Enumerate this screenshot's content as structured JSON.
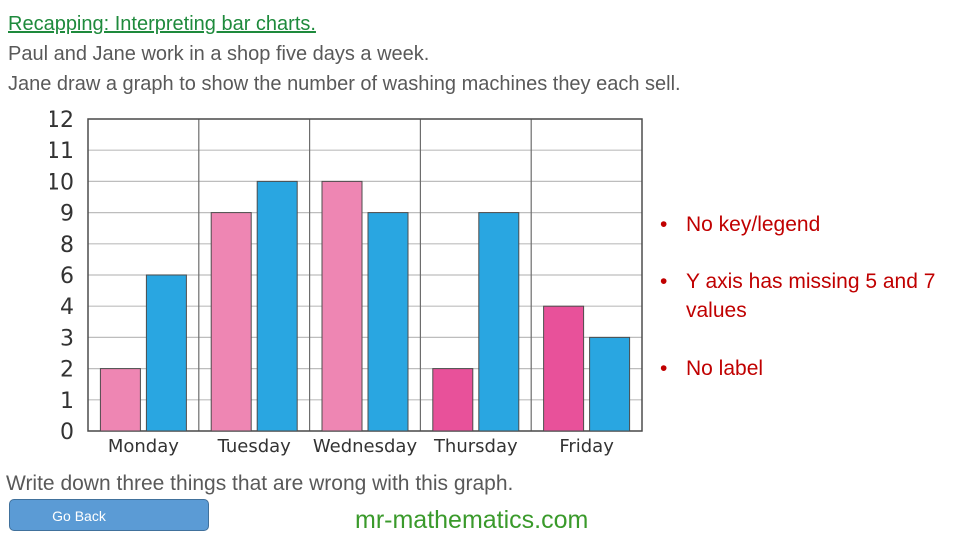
{
  "header": {
    "title": "Recapping: Interpreting bar charts.",
    "line1": "Paul and Jane work in a shop five days a week.",
    "line2": "Jane draw a graph to show the number of washing machines they each sell."
  },
  "chart_data": {
    "type": "bar",
    "categories": [
      "Monday",
      "Tuesday",
      "Wednesday",
      "Thursday",
      "Friday"
    ],
    "series": [
      {
        "values": [
          2,
          9,
          10,
          2,
          4
        ]
      },
      {
        "values": [
          6,
          10,
          9,
          9,
          3
        ]
      }
    ],
    "pink_series_colors": [
      "#ee86b3",
      "#ee86b3",
      "#ee86b3",
      "#e8519a",
      "#e8519a"
    ],
    "blue_series_color": "#29a6e1",
    "y_tick_labels": [
      "0",
      "1",
      "2",
      "3",
      "4",
      "6",
      "8",
      "9",
      "10",
      "11",
      "12"
    ],
    "title": "",
    "xlabel": "",
    "ylabel": "",
    "grid": true,
    "legend": false
  },
  "notes": {
    "bullet": "•",
    "items": [
      "No key/legend",
      "Y axis has missing 5 and 7 values",
      "No label"
    ]
  },
  "question": "Write down three things that are wrong with this graph.",
  "nav": {
    "go_back_label": "Go Back"
  },
  "footer": {
    "site": "mr-mathematics.com"
  }
}
